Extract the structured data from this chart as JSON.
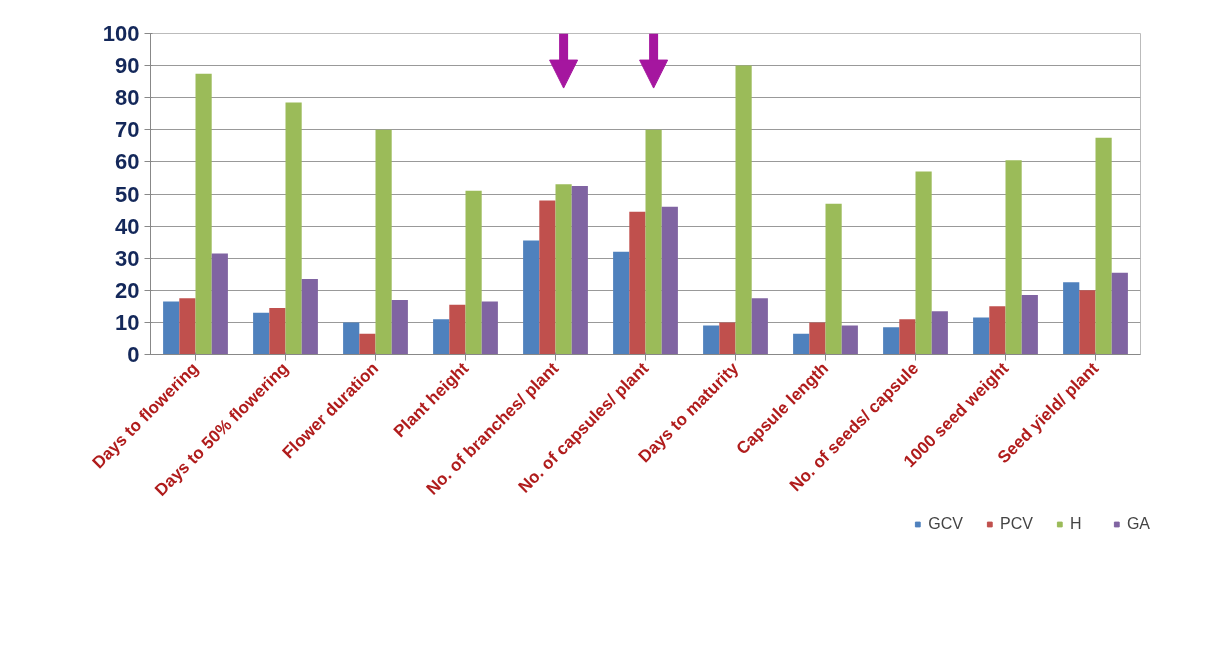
{
  "chart_data": {
    "type": "bar",
    "categories": [
      "Days to flowering",
      "Days to 50% flowering",
      "Flower duration",
      "Plant height",
      "No. of branches/ plant",
      "No. of capsules/ plant",
      "Days to maturity",
      "Capsule length",
      "No. of seeds/ capsule",
      "1000 seed weight",
      "Seed yield/ plant"
    ],
    "series": [
      {
        "name": "GCV",
        "color": "#4f81bd",
        "values": [
          16.5,
          13,
          10,
          11,
          35.5,
          32,
          9,
          6.5,
          8.5,
          11.5,
          22.5
        ]
      },
      {
        "name": "PCV",
        "color": "#c0504d",
        "values": [
          17.5,
          14.5,
          6.5,
          15.5,
          48,
          44.5,
          10,
          10,
          11,
          15,
          20
        ]
      },
      {
        "name": "H",
        "color": "#9bbb59",
        "values": [
          87.5,
          78.5,
          70,
          51,
          53,
          70,
          90,
          47,
          57,
          60.5,
          67.5
        ]
      },
      {
        "name": "GA",
        "color": "#8064a2",
        "values": [
          31.5,
          23.5,
          17,
          16.5,
          52.5,
          46,
          17.5,
          9,
          13.5,
          18.5,
          25.5
        ]
      }
    ],
    "ylim": [
      0,
      100
    ],
    "yticks": [
      0,
      10,
      20,
      30,
      40,
      50,
      60,
      70,
      80,
      90,
      100
    ],
    "grid": "y",
    "legend": "bottom right"
  }
}
